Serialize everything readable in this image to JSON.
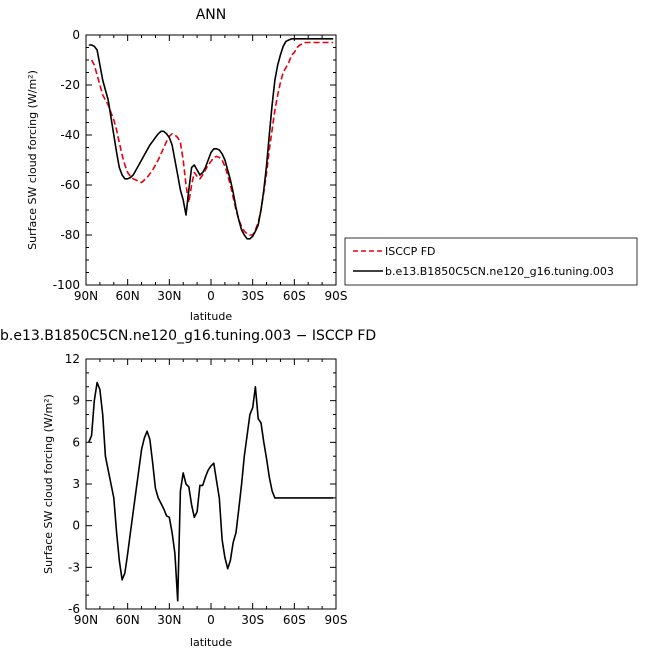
{
  "chart_data": [
    {
      "type": "line",
      "title": "ANN",
      "xlabel": "latitude",
      "ylabel": "Surface SW cloud forcing (W/m²)",
      "xlim": [
        90,
        -90
      ],
      "ylim": [
        -100,
        0
      ],
      "x_ticks": [
        "90N",
        "60N",
        "30N",
        "0",
        "30S",
        "60S",
        "90S"
      ],
      "y_ticks": [
        "0",
        "-20",
        "-40",
        "-60",
        "-80",
        "-100"
      ],
      "grid": false,
      "legend_position": "right",
      "series": [
        {
          "name": "ISCCP FD",
          "color": "#e8000b",
          "style": "dashed",
          "x": [
            86,
            84,
            82,
            80,
            78,
            76,
            74,
            72,
            70,
            68,
            66,
            64,
            62,
            60,
            58,
            56,
            54,
            52,
            50,
            48,
            46,
            44,
            42,
            40,
            38,
            36,
            34,
            32,
            30,
            28,
            26,
            24,
            22,
            20,
            18,
            16,
            14,
            12,
            10,
            8,
            6,
            4,
            2,
            0,
            -2,
            -4,
            -6,
            -8,
            -10,
            -12,
            -14,
            -16,
            -18,
            -20,
            -22,
            -24,
            -26,
            -28,
            -30,
            -32,
            -34,
            -36,
            -38,
            -40,
            -42,
            -44,
            -46,
            -48,
            -50,
            -52,
            -54,
            -56,
            -58,
            -60,
            -62,
            -64,
            -66,
            -68,
            -70,
            -72,
            -74,
            -76,
            -78,
            -80,
            -82,
            -84,
            -86,
            -88
          ],
          "y": [
            -10,
            -12,
            -16,
            -20,
            -24,
            -26,
            -28,
            -31,
            -34,
            -38,
            -43,
            -48,
            -52,
            -55,
            -56.5,
            -57.5,
            -58,
            -58.5,
            -59,
            -58,
            -57,
            -55.5,
            -54,
            -52,
            -50,
            -47.5,
            -45,
            -42.5,
            -40.5,
            -39.5,
            -40,
            -41,
            -43,
            -50,
            -60,
            -67,
            -60,
            -55,
            -56.5,
            -57.5,
            -56,
            -54,
            -52,
            -50.5,
            -49,
            -48.5,
            -49,
            -50,
            -52.5,
            -56,
            -60,
            -65,
            -70,
            -74,
            -76.5,
            -78.5,
            -79.5,
            -80,
            -80,
            -78,
            -75,
            -70,
            -63,
            -55,
            -46,
            -38,
            -30,
            -24,
            -19,
            -15,
            -13,
            -11,
            -8,
            -7,
            -5,
            -4,
            -3.5,
            -3,
            -3,
            -3,
            -3,
            -3,
            -3,
            -3,
            -3,
            -3,
            -3,
            -3
          ]
        },
        {
          "name": "b.e13.B1850C5CN.ne120_g16.tuning.003",
          "color": "#000000",
          "style": "solid",
          "x": [
            88,
            86,
            84,
            82,
            80,
            78,
            76,
            74,
            72,
            70,
            68,
            66,
            64,
            62,
            60,
            58,
            56,
            54,
            52,
            50,
            48,
            46,
            44,
            42,
            40,
            38,
            36,
            34,
            32,
            30,
            28,
            26,
            24,
            22,
            20,
            18,
            16,
            14,
            12,
            10,
            8,
            6,
            4,
            2,
            0,
            -2,
            -4,
            -6,
            -8,
            -10,
            -12,
            -14,
            -16,
            -18,
            -20,
            -22,
            -24,
            -26,
            -28,
            -30,
            -32,
            -34,
            -36,
            -38,
            -40,
            -42,
            -44,
            -46,
            -48,
            -50,
            -52,
            -54,
            -56,
            -58,
            -60,
            -62,
            -64,
            -66,
            -68,
            -70,
            -72,
            -74,
            -76,
            -78,
            -80,
            -82,
            -84,
            -86,
            -88
          ],
          "y": [
            -4,
            -4,
            -4.5,
            -6,
            -12,
            -18,
            -22,
            -26,
            -33,
            -40,
            -47,
            -53,
            -56,
            -57.5,
            -57.5,
            -57,
            -56,
            -54,
            -52,
            -50,
            -48,
            -46,
            -44,
            -42.5,
            -41,
            -39.5,
            -38.5,
            -38.5,
            -39.5,
            -41,
            -44,
            -50,
            -56,
            -62,
            -66,
            -72,
            -62,
            -53,
            -52,
            -54,
            -56,
            -55,
            -53,
            -50,
            -47,
            -45.5,
            -45.5,
            -46,
            -47.5,
            -50,
            -54,
            -58,
            -63,
            -69,
            -74,
            -78,
            -80,
            -81.5,
            -81.5,
            -80.5,
            -78.5,
            -76,
            -70,
            -62,
            -52,
            -40,
            -28,
            -18,
            -12,
            -8,
            -4.5,
            -2.5,
            -2,
            -1.5,
            -1.5,
            -1.5,
            -1.5,
            -1.5,
            -1.5,
            -1.5,
            -1.5,
            -1.5,
            -1.5,
            -1.5,
            -1.5,
            -1.5,
            -1.5,
            -1.5,
            -1.5
          ]
        }
      ]
    },
    {
      "type": "line",
      "title": "b.e13.B1850C5CN.ne120_g16.tuning.003 − ISCCP FD",
      "xlabel": "latitude",
      "ylabel": "Surface SW cloud forcing (W/m²)",
      "xlim": [
        90,
        -90
      ],
      "ylim": [
        -6,
        12
      ],
      "x_ticks": [
        "90N",
        "60N",
        "30N",
        "0",
        "30S",
        "60S",
        "90S"
      ],
      "y_ticks": [
        "12",
        "9",
        "6",
        "3",
        "0",
        "-3",
        "-6"
      ],
      "grid": false,
      "series": [
        {
          "color": "#000000",
          "style": "solid",
          "x": [
            88,
            86,
            84,
            82,
            80,
            78,
            76,
            74,
            72,
            70,
            68,
            66,
            64,
            62,
            60,
            58,
            56,
            54,
            52,
            50,
            48,
            46,
            44,
            42,
            40,
            38,
            36,
            34,
            32,
            30,
            28,
            26,
            24,
            22,
            20,
            18,
            16,
            14,
            12,
            10,
            8,
            6,
            4,
            2,
            0,
            -2,
            -4,
            -6,
            -8,
            -10,
            -12,
            -14,
            -16,
            -18,
            -20,
            -22,
            -24,
            -26,
            -28,
            -30,
            -32,
            -34,
            -36,
            -38,
            -40,
            -42,
            -44,
            -46,
            -48,
            -50,
            -52,
            -54,
            -56,
            -58,
            -60,
            -62,
            -64,
            -66,
            -68,
            -70,
            -72,
            -74,
            -76,
            -78,
            -80,
            -82,
            -84,
            -86,
            -88
          ],
          "y": [
            6,
            6.5,
            9,
            10.3,
            9.8,
            8.0,
            5.0,
            4.0,
            3.0,
            2.0,
            -0.5,
            -2.5,
            -3.9,
            -3.4,
            -2.0,
            -0.5,
            1.0,
            2.5,
            4.0,
            5.5,
            6.3,
            6.8,
            6.2,
            4.5,
            2.7,
            2.0,
            1.6,
            1.2,
            0.7,
            0.6,
            -0.5,
            -2.0,
            -5.4,
            2.5,
            3.8,
            3.0,
            2.8,
            1.5,
            0.6,
            1.0,
            2.9,
            2.9,
            3.5,
            4.0,
            4.3,
            4.5,
            3.2,
            2.0,
            -1.0,
            -2.3,
            -3.1,
            -2.5,
            -1.2,
            -0.5,
            1.2,
            3.0,
            5.0,
            6.5,
            8.0,
            8.5,
            10.0,
            7.7,
            7.4,
            6.0,
            4.8,
            3.5,
            2.5,
            2.0,
            2.0,
            2.0,
            2.0,
            2.0,
            2.0,
            2.0,
            2.0,
            2.0,
            2.0,
            2.0,
            2.0,
            2.0,
            2.0,
            2.0,
            2.0,
            2.0,
            2.0,
            2.0,
            2.0,
            2.0,
            2.0
          ]
        }
      ]
    }
  ]
}
